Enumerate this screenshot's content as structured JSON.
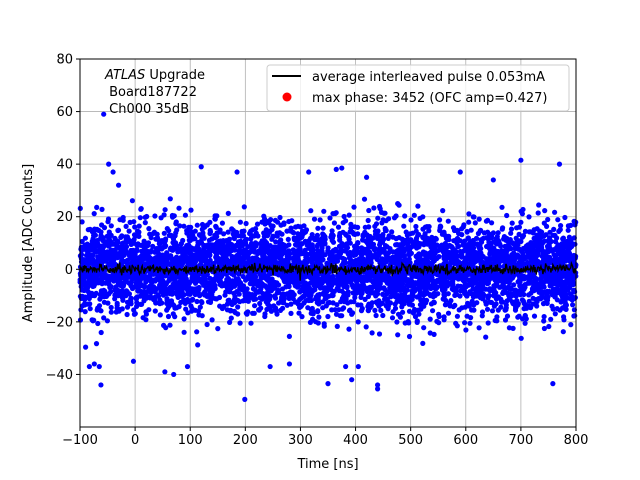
{
  "chart_data": {
    "type": "scatter",
    "title": "",
    "xlabel": "Time [ns]",
    "ylabel": "Amplitude [ADC Counts]",
    "xlim": [
      -100,
      800
    ],
    "ylim": [
      -60,
      80
    ],
    "xticks": [
      "−100",
      "0",
      "100",
      "200",
      "300",
      "400",
      "500",
      "600",
      "700",
      "800"
    ],
    "xtick_values": [
      -100,
      0,
      100,
      200,
      300,
      400,
      500,
      600,
      700,
      800
    ],
    "yticks": [
      "−40",
      "−20",
      "0",
      "20",
      "40",
      "60",
      "80"
    ],
    "ytick_values": [
      -40,
      -20,
      0,
      20,
      40,
      60,
      80
    ],
    "grid": true,
    "annotation": {
      "italic": "ATLAS",
      "line1_rest": " Upgrade",
      "line2": " Board187722",
      "line3": " Ch000 35dB"
    },
    "legend": {
      "placement": "top-right",
      "entries": [
        {
          "label": "average interleaved pulse 0.053mA",
          "marker": "line",
          "color": "#000000"
        },
        {
          "label": "max phase: 3452 (OFC amp=0.427)",
          "marker": "dot",
          "color": "#ff0000"
        }
      ]
    },
    "series": [
      {
        "role": "samples",
        "color": "#0000ff",
        "typical_range": [
          -25,
          25
        ],
        "outliers": [
          [
            -57,
            59
          ],
          [
            -48,
            40
          ],
          [
            -40,
            37
          ],
          [
            -30,
            32
          ],
          [
            -83,
            -37
          ],
          [
            -74,
            -36
          ],
          [
            -65,
            -37
          ],
          [
            -62,
            -44
          ],
          [
            -3,
            -35
          ],
          [
            54,
            -39
          ],
          [
            70,
            -40
          ],
          [
            95,
            -37
          ],
          [
            199,
            -49.5
          ],
          [
            245,
            -37
          ],
          [
            280,
            -36
          ],
          [
            350,
            -43.5
          ],
          [
            393,
            -42
          ],
          [
            440,
            -44
          ],
          [
            440,
            -45.5
          ],
          [
            382,
            -37
          ],
          [
            405,
            -37
          ],
          [
            758,
            -43.5
          ],
          [
            700,
            41.5
          ],
          [
            770,
            40
          ],
          [
            365,
            38
          ],
          [
            375,
            38.5
          ],
          [
            315,
            37
          ],
          [
            185,
            37
          ],
          [
            120,
            39
          ],
          [
            590,
            37
          ],
          [
            650,
            34
          ],
          [
            420,
            35
          ]
        ]
      },
      {
        "role": "average",
        "color": "#000000",
        "level": 0
      }
    ]
  }
}
